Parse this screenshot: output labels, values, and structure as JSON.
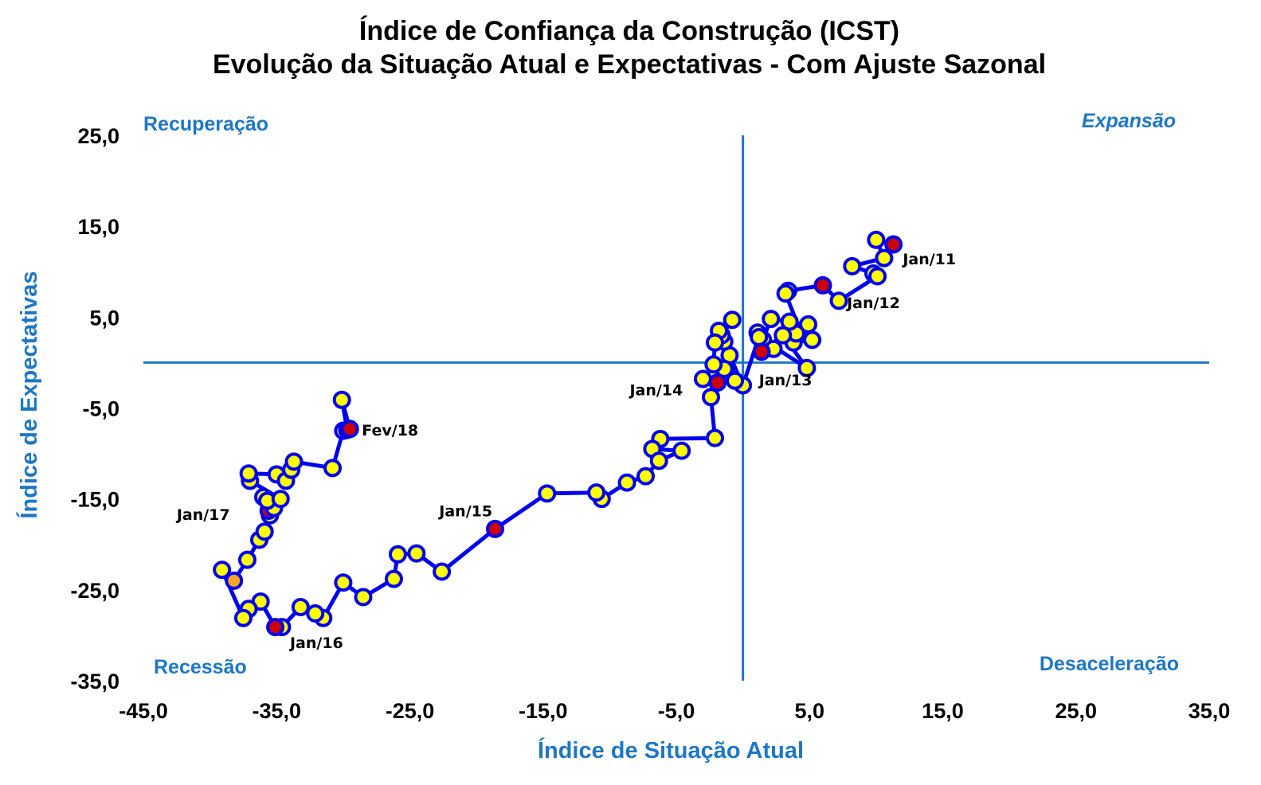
{
  "chart_data": {
    "type": "scatter",
    "title": "Índice de Confiança da Construção (ICST)",
    "subtitle": "Evolução da Situação Atual e Expectativas - Com Ajuste Sazonal",
    "xlabel": "Índice de Situação Atual",
    "ylabel": "Índice de Expectativas",
    "xlim": [
      -45,
      35
    ],
    "ylim": [
      -35,
      25
    ],
    "x_ticks": [
      "-45,0",
      "-35,0",
      "-25,0",
      "-15,0",
      "-5,0",
      "5,0",
      "15,0",
      "25,0",
      "35,0"
    ],
    "y_ticks": [
      "25,0",
      "15,0",
      "5,0",
      "-5,0",
      "-15,0",
      "-25,0",
      "-35,0"
    ],
    "x_tick_values": [
      -45,
      -35,
      -25,
      -15,
      -5,
      5,
      15,
      25,
      35
    ],
    "y_tick_values": [
      25,
      15,
      5,
      -5,
      -15,
      -25,
      -35
    ],
    "quadrants": {
      "top_left": "Recuperação",
      "top_right": "Expansão",
      "bottom_left": "Recessão",
      "bottom_right": "Desaceleração"
    },
    "colors": {
      "line": "#0000ee",
      "marker_fill": "#ffff00",
      "highlight_fill": "#cc0000",
      "last_fill": "#f5a623",
      "axis": "#1f77c4"
    },
    "points": [
      {
        "x": 11.3,
        "y": 13.0,
        "highlight": true
      },
      {
        "x": 10.0,
        "y": 13.5
      },
      {
        "x": 10.6,
        "y": 11.5
      },
      {
        "x": 8.2,
        "y": 10.6
      },
      {
        "x": 9.8,
        "y": 9.8
      },
      {
        "x": 10.1,
        "y": 9.5
      },
      {
        "x": 7.2,
        "y": 6.8
      },
      {
        "x": 6.0,
        "y": 8.5,
        "highlight": true
      },
      {
        "x": 3.4,
        "y": 7.9
      },
      {
        "x": 3.2,
        "y": 7.6
      },
      {
        "x": 4.3,
        "y": 3.5
      },
      {
        "x": 4.9,
        "y": 4.2
      },
      {
        "x": 5.2,
        "y": 2.5
      },
      {
        "x": 3.8,
        "y": 2.2
      },
      {
        "x": 4.0,
        "y": 3.2
      },
      {
        "x": 3.5,
        "y": 4.5
      },
      {
        "x": 2.1,
        "y": 4.8
      },
      {
        "x": 1.5,
        "y": 2.5
      },
      {
        "x": 2.3,
        "y": 1.5
      },
      {
        "x": 1.1,
        "y": 3.3
      },
      {
        "x": 1.4,
        "y": 1.2,
        "highlight": true
      },
      {
        "x": 3.0,
        "y": 3.0
      },
      {
        "x": 4.8,
        "y": -0.6
      },
      {
        "x": 1.2,
        "y": 2.8
      },
      {
        "x": 0.0,
        "y": -2.5
      },
      {
        "x": -1.0,
        "y": 0.8
      },
      {
        "x": -0.6,
        "y": -2.0
      },
      {
        "x": -1.4,
        "y": -0.7
      },
      {
        "x": -1.4,
        "y": 2.3
      },
      {
        "x": -1.6,
        "y": 3.0
      },
      {
        "x": -0.8,
        "y": 4.7
      },
      {
        "x": -1.8,
        "y": 3.5
      },
      {
        "x": -2.1,
        "y": 2.2
      },
      {
        "x": -2.2,
        "y": -0.2
      },
      {
        "x": -3.0,
        "y": -1.8
      },
      {
        "x": -1.9,
        "y": -2.2,
        "highlight": true
      },
      {
        "x": -2.4,
        "y": -3.8
      },
      {
        "x": -2.1,
        "y": -8.3
      },
      {
        "x": -6.2,
        "y": -8.4
      },
      {
        "x": -6.8,
        "y": -9.5
      },
      {
        "x": -4.6,
        "y": -9.7
      },
      {
        "x": -6.3,
        "y": -10.8
      },
      {
        "x": -7.3,
        "y": -12.5
      },
      {
        "x": -8.7,
        "y": -13.2
      },
      {
        "x": -10.6,
        "y": -15.0
      },
      {
        "x": -11.0,
        "y": -14.3
      },
      {
        "x": -14.7,
        "y": -14.4
      },
      {
        "x": -18.6,
        "y": -18.3,
        "highlight": true
      },
      {
        "x": -22.6,
        "y": -23.0
      },
      {
        "x": -24.5,
        "y": -21.0
      },
      {
        "x": -25.9,
        "y": -21.1
      },
      {
        "x": -26.2,
        "y": -23.8
      },
      {
        "x": -28.5,
        "y": -25.8
      },
      {
        "x": -30.0,
        "y": -24.2
      },
      {
        "x": -31.5,
        "y": -28.1
      },
      {
        "x": -32.1,
        "y": -27.6
      },
      {
        "x": -33.2,
        "y": -26.9
      },
      {
        "x": -34.6,
        "y": -29.1
      },
      {
        "x": -35.1,
        "y": -29.1,
        "highlight": true
      },
      {
        "x": -36.2,
        "y": -26.3
      },
      {
        "x": -37.1,
        "y": -27.1
      },
      {
        "x": -37.5,
        "y": -28.1
      },
      {
        "x": -39.1,
        "y": -22.8
      },
      {
        "x": -38.2,
        "y": -24.0,
        "last": true
      },
      {
        "x": -37.2,
        "y": -21.7
      },
      {
        "x": -36.3,
        "y": -19.5
      },
      {
        "x": -35.9,
        "y": -18.6
      },
      {
        "x": -35.5,
        "y": -16.8
      },
      {
        "x": -35.6,
        "y": -16.3,
        "highlight": true
      },
      {
        "x": -35.2,
        "y": -16.0
      },
      {
        "x": -36.0,
        "y": -14.8
      },
      {
        "x": -35.7,
        "y": -15.2
      },
      {
        "x": -34.7,
        "y": -15.0
      },
      {
        "x": -37.0,
        "y": -13.0
      },
      {
        "x": -37.1,
        "y": -12.2
      },
      {
        "x": -35.0,
        "y": -12.3
      },
      {
        "x": -34.3,
        "y": -13.0
      },
      {
        "x": -33.9,
        "y": -11.8
      },
      {
        "x": -33.7,
        "y": -10.9
      },
      {
        "x": -30.8,
        "y": -11.6
      },
      {
        "x": -30.0,
        "y": -7.5
      },
      {
        "x": -29.7,
        "y": -7.4
      },
      {
        "x": -30.1,
        "y": -4.1
      },
      {
        "x": -29.5,
        "y": -7.3,
        "highlight": true
      }
    ],
    "annotations": [
      {
        "text": "Jan/11",
        "x": 12.0,
        "y": 10.8
      },
      {
        "text": "Jan/12",
        "x": 7.8,
        "y": 6.0
      },
      {
        "text": "Jan/13",
        "x": 1.2,
        "y": -2.5
      },
      {
        "text": "Jan/14",
        "x": -8.5,
        "y": -3.6
      },
      {
        "text": "Jan/15",
        "x": -22.8,
        "y": -16.9
      },
      {
        "text": "Jan/16",
        "x": -34.0,
        "y": -31.4
      },
      {
        "text": "Jan/17",
        "x": -42.5,
        "y": -17.3
      },
      {
        "text": "Fev/18",
        "x": -28.6,
        "y": -8.0
      }
    ]
  }
}
